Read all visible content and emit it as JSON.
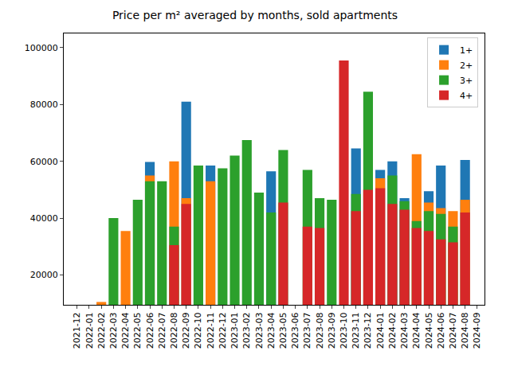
{
  "chart_data": {
    "type": "bar",
    "title": "Price per m² averaged by months, sold apartments",
    "categories": [
      "2021-12",
      "2022-01",
      "2022-02",
      "2022-03",
      "2022-04",
      "2022-05",
      "2022-06",
      "2022-07",
      "2022-08",
      "2022-09",
      "2022-10",
      "2022-11",
      "2022-12",
      "2023-01",
      "2023-02",
      "2023-03",
      "2023-04",
      "2023-05",
      "2023-06",
      "2023-07",
      "2023-08",
      "2023-09",
      "2023-10",
      "2023-11",
      "2023-12",
      "2024-01",
      "2024-02",
      "2024-03",
      "2024-04",
      "2024-05",
      "2024-06",
      "2024-07",
      "2024-08",
      "2024-09"
    ],
    "series": [
      {
        "name": "1+",
        "color": "#1f77b4",
        "values": [
          null,
          null,
          null,
          null,
          null,
          null,
          59800,
          null,
          null,
          81000,
          null,
          58500,
          null,
          null,
          null,
          null,
          56500,
          null,
          null,
          null,
          null,
          null,
          null,
          64500,
          null,
          57000,
          60000,
          47000,
          null,
          49500,
          58500,
          null,
          60500,
          null
        ]
      },
      {
        "name": "2+",
        "color": "#ff7f0e",
        "values": [
          null,
          null,
          10500,
          null,
          35500,
          null,
          55000,
          null,
          60000,
          47000,
          null,
          53000,
          null,
          null,
          null,
          null,
          null,
          null,
          null,
          null,
          null,
          null,
          null,
          null,
          null,
          54000,
          null,
          null,
          62500,
          45500,
          43500,
          42500,
          46500,
          null
        ]
      },
      {
        "name": "3+",
        "color": "#2ca02c",
        "values": [
          null,
          null,
          null,
          40000,
          null,
          46500,
          53000,
          53000,
          37000,
          null,
          58500,
          null,
          57500,
          62000,
          67500,
          49000,
          42000,
          64000,
          null,
          57000,
          47000,
          46500,
          null,
          48500,
          84500,
          null,
          55000,
          46000,
          39000,
          42500,
          41500,
          37000,
          null,
          null
        ]
      },
      {
        "name": "4+",
        "color": "#d62728",
        "values": [
          null,
          null,
          null,
          null,
          null,
          null,
          null,
          null,
          30500,
          45000,
          null,
          null,
          null,
          null,
          null,
          null,
          null,
          45500,
          null,
          37000,
          36500,
          null,
          95500,
          42500,
          50000,
          50500,
          45000,
          43000,
          36500,
          35500,
          32500,
          31500,
          42000,
          null
        ]
      }
    ],
    "stacked": false,
    "ylim": [
      9500,
      105000
    ],
    "yticks": [
      20000,
      40000,
      60000,
      80000,
      100000
    ],
    "grid": false,
    "legend": "upper right"
  }
}
